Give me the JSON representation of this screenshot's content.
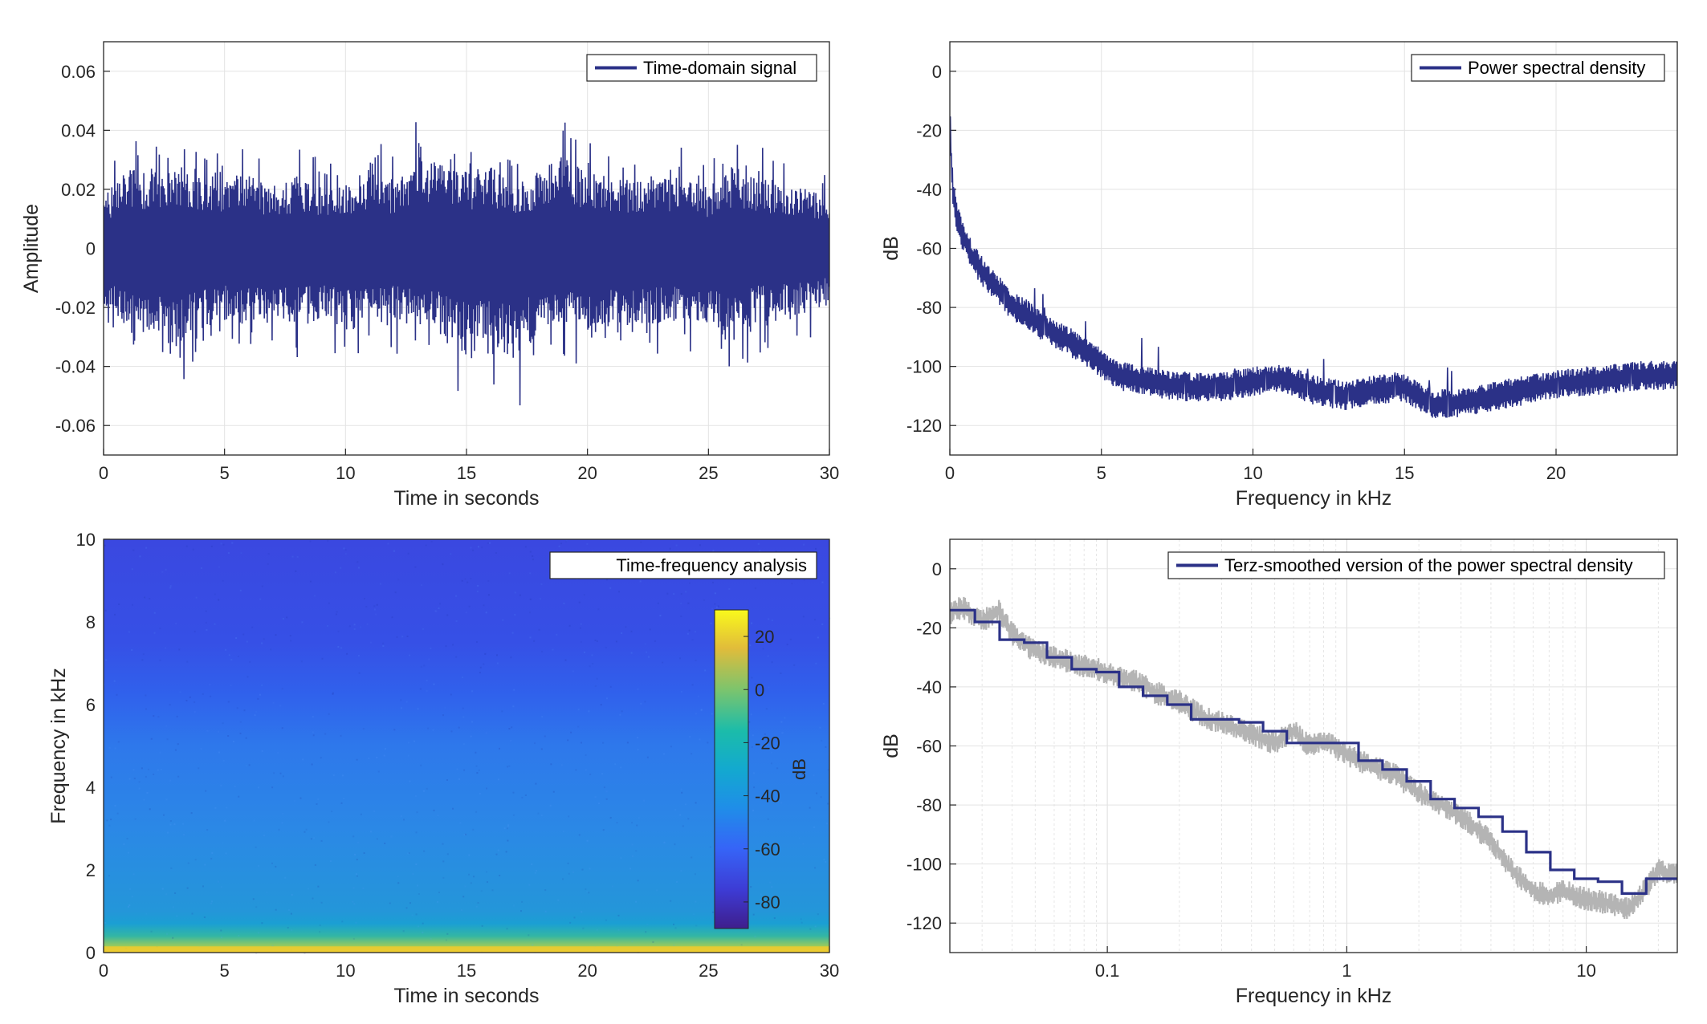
{
  "chart_data": [
    {
      "type": "line",
      "xlabel": "Time in seconds",
      "ylabel": "Amplitude",
      "xlim": [
        0,
        30
      ],
      "ylim": [
        -0.07,
        0.07
      ],
      "xticks": [
        0,
        5,
        10,
        15,
        20,
        25,
        30
      ],
      "yticks": [
        -0.06,
        -0.04,
        -0.02,
        0,
        0.02,
        0.04,
        0.06
      ],
      "ytick_labels": [
        "-0.06",
        "-0.04",
        "-0.02",
        "0",
        "0.02",
        "0.04",
        "0.06"
      ],
      "grid": true,
      "legend_position": "top-right",
      "series": [
        {
          "name": "Time-domain signal",
          "color": "#2b3187",
          "envelope_x": [
            0,
            1,
            2,
            3,
            4,
            5,
            6,
            7,
            8,
            9,
            10,
            11,
            12,
            13,
            14,
            15,
            16,
            17,
            18,
            19,
            20,
            21,
            22,
            23,
            24,
            25,
            26,
            27,
            28,
            29,
            30
          ],
          "envelope_max": [
            0.025,
            0.04,
            0.037,
            0.04,
            0.037,
            0.033,
            0.036,
            0.03,
            0.035,
            0.03,
            0.032,
            0.038,
            0.033,
            0.045,
            0.04,
            0.037,
            0.04,
            0.032,
            0.038,
            0.045,
            0.037,
            0.035,
            0.033,
            0.036,
            0.034,
            0.03,
            0.04,
            0.036,
            0.032,
            0.03,
            0.025
          ],
          "envelope_min": [
            -0.025,
            -0.04,
            -0.045,
            -0.05,
            -0.04,
            -0.035,
            -0.038,
            -0.032,
            -0.037,
            -0.035,
            -0.04,
            -0.038,
            -0.036,
            -0.04,
            -0.042,
            -0.052,
            -0.045,
            -0.057,
            -0.04,
            -0.038,
            -0.042,
            -0.04,
            -0.036,
            -0.038,
            -0.035,
            -0.04,
            -0.045,
            -0.036,
            -0.035,
            -0.032,
            -0.028
          ]
        }
      ]
    },
    {
      "type": "line",
      "xlabel": "Frequency in kHz",
      "ylabel": "dB",
      "xlim": [
        0,
        24
      ],
      "ylim": [
        -130,
        10
      ],
      "xticks": [
        0,
        5,
        10,
        15,
        20
      ],
      "yticks": [
        -120,
        -100,
        -80,
        -60,
        -40,
        -20,
        0
      ],
      "grid": true,
      "legend_position": "top-right",
      "series": [
        {
          "name": "Power spectral density",
          "color": "#2b3187",
          "x": [
            0,
            0.05,
            0.1,
            0.2,
            0.4,
            0.7,
            1,
            1.5,
            2,
            2.5,
            3,
            3.5,
            4,
            4.5,
            5,
            5.5,
            6,
            7,
            8,
            9,
            10,
            11,
            12,
            13,
            14,
            15,
            16,
            17,
            18,
            19,
            20,
            21,
            22,
            23,
            24
          ],
          "y": [
            -15,
            -30,
            -40,
            -48,
            -55,
            -62,
            -67,
            -73,
            -79,
            -82,
            -86,
            -89,
            -92,
            -95,
            -99,
            -103,
            -104,
            -106,
            -107,
            -107,
            -105,
            -104,
            -108,
            -110,
            -108,
            -107,
            -113,
            -112,
            -110,
            -108,
            -106,
            -105,
            -104,
            -103,
            -103
          ]
        }
      ]
    },
    {
      "type": "heatmap",
      "title": "Time-frequency analysis",
      "xlabel": "Time in seconds",
      "ylabel": "Frequency in kHz",
      "xlim": [
        0,
        30
      ],
      "ylim": [
        0,
        10
      ],
      "xticks": [
        0,
        5,
        10,
        15,
        20,
        25,
        30
      ],
      "yticks": [
        0,
        2,
        4,
        6,
        8,
        10
      ],
      "colorbar": {
        "label": "dB",
        "ticks": [
          20,
          0,
          -20,
          -40,
          -60,
          -80
        ],
        "range": [
          -90,
          30
        ],
        "position": "top-right"
      },
      "level_profile": {
        "frequency_khz": [
          0,
          0.3,
          0.7,
          1,
          2,
          3,
          4,
          5,
          6,
          7,
          8,
          9,
          10
        ],
        "level_db": [
          20,
          -25,
          -30,
          -45,
          -50,
          -55,
          -58,
          -62,
          -72,
          -76,
          -80,
          -80,
          -80
        ]
      }
    },
    {
      "type": "line",
      "xlabel": "Frequency in kHz",
      "ylabel": "dB",
      "xscale": "log",
      "xlim": [
        0.022,
        24
      ],
      "ylim": [
        -130,
        10
      ],
      "xticks": [
        0.1,
        1,
        10
      ],
      "xtick_labels": [
        "0.1",
        "1",
        "10"
      ],
      "yticks": [
        -120,
        -100,
        -80,
        -60,
        -40,
        -20,
        0
      ],
      "grid": true,
      "legend_position": "top-right",
      "series": [
        {
          "name": "",
          "color": "#b4b4b4",
          "x": [
            0.022,
            0.025,
            0.03,
            0.035,
            0.04,
            0.05,
            0.06,
            0.08,
            0.1,
            0.13,
            0.16,
            0.2,
            0.25,
            0.3,
            0.4,
            0.5,
            0.6,
            0.7,
            0.8,
            1,
            1.3,
            1.6,
            2,
            2.5,
            3,
            4,
            5,
            6,
            7,
            8,
            10,
            12,
            15,
            18,
            20,
            24
          ],
          "y": [
            -15,
            -13,
            -18,
            -14,
            -22,
            -28,
            -30,
            -33,
            -35,
            -38,
            -42,
            -45,
            -50,
            -52,
            -56,
            -59,
            -55,
            -60,
            -58,
            -63,
            -67,
            -70,
            -76,
            -80,
            -84,
            -92,
            -103,
            -109,
            -111,
            -109,
            -112,
            -113,
            -115,
            -108,
            -102,
            -104
          ]
        },
        {
          "name": "Terz-smoothed version of the power spectral density",
          "color": "#2b3187",
          "step_edges": [
            0.022,
            0.028,
            0.0355,
            0.045,
            0.056,
            0.071,
            0.09,
            0.112,
            0.141,
            0.178,
            0.224,
            0.282,
            0.355,
            0.447,
            0.562,
            0.708,
            0.891,
            1.12,
            1.41,
            1.78,
            2.24,
            2.82,
            3.55,
            4.47,
            5.62,
            7.08,
            8.91,
            11.2,
            14.1,
            17.8,
            24
          ],
          "values": [
            -14,
            -18,
            -24,
            -25,
            -30,
            -34,
            -35,
            -40,
            -43,
            -46,
            -51,
            -51,
            -52,
            -55,
            -59,
            -59,
            -59,
            -65,
            -68,
            -72,
            -78,
            -81,
            -84,
            -89,
            -96,
            -102,
            -105,
            -106,
            -110,
            -105
          ]
        }
      ]
    }
  ]
}
